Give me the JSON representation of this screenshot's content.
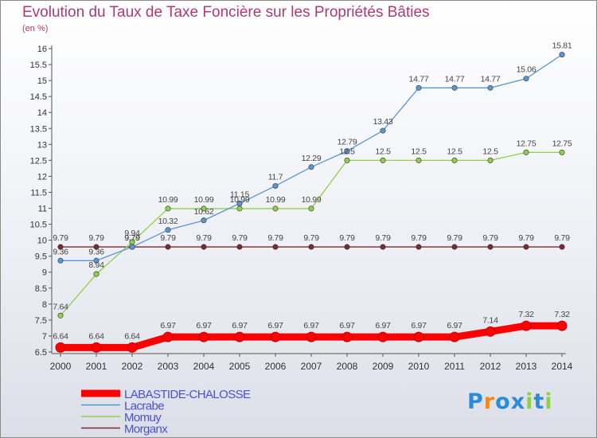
{
  "header": {
    "title": "Evolution du Taux de Taxe Foncière sur les Propriétés Bâties",
    "unit": "(en %)"
  },
  "logo": {
    "text": "Proxiti"
  },
  "chart_data": {
    "type": "line",
    "x": [
      "2000",
      "2001",
      "2002",
      "2003",
      "2004",
      "2005",
      "2006",
      "2007",
      "2008",
      "2009",
      "2010",
      "2011",
      "2012",
      "2013",
      "2014"
    ],
    "ylim": [
      6.5,
      16
    ],
    "yticks": [
      "6.5",
      "7",
      "7.5",
      "8",
      "8.5",
      "9",
      "9.5",
      "10",
      "10.5",
      "11",
      "11.5",
      "12",
      "12.5",
      "13",
      "13.5",
      "14",
      "14.5",
      "15",
      "15.5",
      "16"
    ],
    "grid": false,
    "legend_position": "bottom-left",
    "series": [
      {
        "name": "LABASTIDE-CHALOSSE",
        "color": "#ff0000",
        "width": 9,
        "values": [
          6.64,
          6.64,
          6.64,
          6.97,
          6.97,
          6.97,
          6.97,
          6.97,
          6.97,
          6.97,
          6.97,
          6.97,
          7.14,
          7.32,
          7.32
        ],
        "labels": [
          "6.64",
          "6.64",
          "6.64",
          "6.97",
          "6.97",
          "6.97",
          "6.97",
          "6.97",
          "6.97",
          "6.97",
          "6.97",
          "6.97",
          "7.14",
          "7.32",
          "7.32"
        ]
      },
      {
        "name": "Lacrabe",
        "color": "#5a96d2",
        "width": 1.3,
        "values": [
          9.36,
          9.36,
          9.79,
          10.32,
          10.62,
          11.15,
          11.7,
          12.29,
          12.79,
          13.43,
          14.77,
          14.77,
          14.77,
          15.06,
          15.81
        ],
        "labels": [
          "9.36",
          "9.36",
          "9.79",
          "10.32",
          "10.62",
          "11.15",
          "11.7",
          "12.29",
          "12.79",
          "13.43",
          "14.77",
          "14.77",
          "14.77",
          "15.06",
          "15.81"
        ]
      },
      {
        "name": "Momuy",
        "color": "#8ed04a",
        "width": 1.3,
        "values": [
          7.64,
          8.94,
          9.94,
          10.99,
          10.99,
          10.99,
          10.99,
          10.99,
          12.5,
          12.5,
          12.5,
          12.5,
          12.5,
          12.75,
          12.75
        ],
        "labels": [
          "7.64",
          "8.94",
          "9.94",
          "10.99",
          "10.99",
          "10.99",
          "10.99",
          "10.99",
          "12.5",
          "12.5",
          "12.5",
          "12.5",
          "12.5",
          "12.75",
          "12.75"
        ]
      },
      {
        "name": "Morganx",
        "color": "#7a2a33",
        "width": 1.3,
        "values": [
          9.79,
          9.79,
          9.79,
          9.79,
          9.79,
          9.79,
          9.79,
          9.79,
          9.79,
          9.79,
          9.79,
          9.79,
          9.79,
          9.79,
          9.79
        ],
        "labels": [
          "9.79",
          "9.79",
          "9.79",
          "9.79",
          "9.79",
          "9.79",
          "9.79",
          "9.79",
          "9.79",
          "9.79",
          "9.79",
          "9.79",
          "9.79",
          "9.79",
          "9.79"
        ]
      }
    ]
  }
}
